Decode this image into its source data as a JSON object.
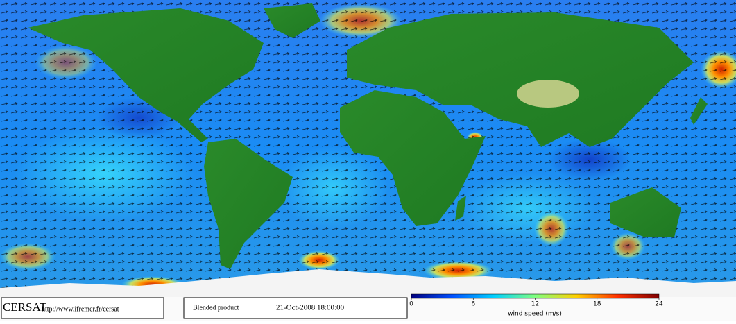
{
  "footer": {
    "logo": "CERSAT",
    "url": "http://www.ifremer.fr/cersat",
    "product": "Blended product",
    "date": "21-Oct-2008 18:00:00"
  },
  "colorbar": {
    "label": "wind speed (m/s)",
    "lim": [
      0,
      24
    ],
    "ticks": [
      0,
      6,
      12,
      18,
      24
    ],
    "colors": [
      "#000080",
      "#0050ff",
      "#00d0ff",
      "#80ff80",
      "#ffd000",
      "#ff3000",
      "#800000"
    ]
  }
}
